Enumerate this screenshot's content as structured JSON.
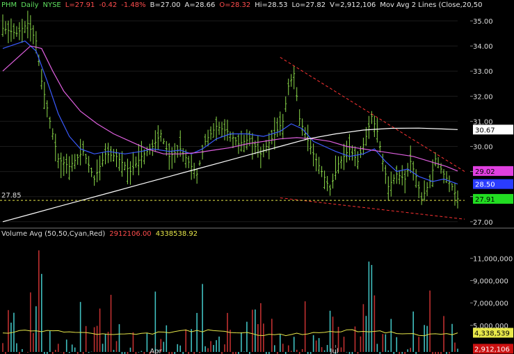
{
  "header": {
    "symbol": "PHM",
    "interval": "Daily",
    "exchange": "NYSE",
    "last": "L=27.91",
    "change": "-0.42",
    "change_pct": "-1.48%",
    "bid": "B=27.00",
    "ask": "A=28.66",
    "open": "O=28.32",
    "high": "Hi=28.53",
    "low": "Lo=27.82",
    "volume": "V=2,912,106",
    "study": "Mov Avg 2 Lines (Close,20,50"
  },
  "volume_header": {
    "label": "Volume Avg (50,50,Cyan,Red)",
    "current": "2912106.00",
    "average": "4338538.92"
  },
  "colors": {
    "background": "#000000",
    "up_bar": "#8bd94a",
    "sma20": "#3a5bff",
    "sma50": "#e060e0",
    "sma200": "#ffffff",
    "trendline": "#ff3333",
    "support": "#e8e84a",
    "vol_up": "#40c0c0",
    "vol_down": "#c03030",
    "vol_avg": "#e8e84a"
  },
  "price_tags": {
    "sma200": "30.67",
    "sma50": "29.02",
    "sma20": "28.50",
    "last": "27.91",
    "support": "27.85"
  },
  "volume_tags": {
    "average": "4,338,539",
    "current": "2,912,106"
  },
  "chart_data": [
    {
      "type": "ohlc",
      "title": "PHM - Daily NYSE",
      "y_axis_ticks": [
        "27.00",
        "28.00",
        "29.00",
        "30.00",
        "31.00",
        "32.00",
        "33.00",
        "34.00",
        "35.00"
      ],
      "ylim": [
        26.8,
        35.5
      ],
      "x_axis_labels": [
        {
          "label": "Apr",
          "day": 55
        },
        {
          "label": "Jul",
          "day": 120
        }
      ],
      "days": 164,
      "support_level": 27.85,
      "series": [
        {
          "name": "Close",
          "points": [
            [
              0,
              34.7
            ],
            [
              5,
              34.5
            ],
            [
              9,
              34.9
            ],
            [
              12,
              34.2
            ],
            [
              14,
              32.6
            ],
            [
              17,
              31.0
            ],
            [
              20,
              29.5
            ],
            [
              24,
              29.2
            ],
            [
              29,
              29.8
            ],
            [
              33,
              28.7
            ],
            [
              37,
              29.7
            ],
            [
              41,
              29.6
            ],
            [
              46,
              29.0
            ],
            [
              50,
              29.6
            ],
            [
              54,
              30.0
            ],
            [
              57,
              30.5
            ],
            [
              60,
              29.6
            ],
            [
              64,
              29.9
            ],
            [
              68,
              29.2
            ],
            [
              70,
              28.9
            ],
            [
              73,
              30.2
            ],
            [
              77,
              30.8
            ],
            [
              81,
              30.6
            ],
            [
              85,
              30.1
            ],
            [
              89,
              30.3
            ],
            [
              93,
              29.7
            ],
            [
              97,
              30.3
            ],
            [
              101,
              31.0
            ],
            [
              103,
              32.4
            ],
            [
              105,
              32.9
            ],
            [
              107,
              31.1
            ],
            [
              109,
              30.5
            ],
            [
              112,
              29.7
            ],
            [
              115,
              29.0
            ],
            [
              118,
              28.3
            ],
            [
              121,
              29.3
            ],
            [
              125,
              29.9
            ],
            [
              128,
              29.4
            ],
            [
              131,
              30.4
            ],
            [
              133,
              31.2
            ],
            [
              135,
              30.6
            ],
            [
              137,
              29.4
            ],
            [
              139,
              28.4
            ],
            [
              142,
              28.9
            ],
            [
              145,
              28.7
            ],
            [
              147,
              29.4
            ],
            [
              149,
              28.8
            ],
            [
              151,
              27.9
            ],
            [
              154,
              28.6
            ],
            [
              156,
              29.5
            ],
            [
              159,
              28.9
            ],
            [
              162,
              28.4
            ],
            [
              164,
              27.91
            ]
          ]
        },
        {
          "name": "SMA 20",
          "points": [
            [
              0,
              33.9
            ],
            [
              8,
              34.2
            ],
            [
              12,
              33.8
            ],
            [
              16,
              32.6
            ],
            [
              20,
              31.3
            ],
            [
              24,
              30.4
            ],
            [
              28,
              29.9
            ],
            [
              33,
              29.7
            ],
            [
              38,
              29.8
            ],
            [
              44,
              29.7
            ],
            [
              50,
              29.8
            ],
            [
              54,
              29.9
            ],
            [
              60,
              29.8
            ],
            [
              64,
              29.85
            ],
            [
              68,
              29.7
            ],
            [
              72,
              29.9
            ],
            [
              77,
              30.3
            ],
            [
              82,
              30.5
            ],
            [
              88,
              30.5
            ],
            [
              94,
              30.4
            ],
            [
              100,
              30.6
            ],
            [
              104,
              30.9
            ],
            [
              108,
              30.7
            ],
            [
              112,
              30.2
            ],
            [
              116,
              30.0
            ],
            [
              120,
              29.8
            ],
            [
              125,
              29.6
            ],
            [
              130,
              29.7
            ],
            [
              134,
              29.9
            ],
            [
              138,
              29.4
            ],
            [
              142,
              29.0
            ],
            [
              146,
              29.1
            ],
            [
              150,
              28.8
            ],
            [
              155,
              28.6
            ],
            [
              159,
              28.7
            ],
            [
              164,
              28.5
            ]
          ]
        },
        {
          "name": "SMA 50",
          "points": [
            [
              0,
              33.0
            ],
            [
              6,
              33.6
            ],
            [
              10,
              34.0
            ],
            [
              14,
              33.9
            ],
            [
              18,
              33.0
            ],
            [
              22,
              32.2
            ],
            [
              28,
              31.4
            ],
            [
              34,
              30.9
            ],
            [
              40,
              30.5
            ],
            [
              46,
              30.2
            ],
            [
              52,
              29.9
            ],
            [
              58,
              29.7
            ],
            [
              64,
              29.7
            ],
            [
              70,
              29.75
            ],
            [
              76,
              29.85
            ],
            [
              82,
              29.95
            ],
            [
              88,
              30.1
            ],
            [
              94,
              30.2
            ],
            [
              100,
              30.3
            ],
            [
              106,
              30.35
            ],
            [
              112,
              30.3
            ],
            [
              118,
              30.2
            ],
            [
              124,
              30.0
            ],
            [
              130,
              29.9
            ],
            [
              136,
              29.8
            ],
            [
              142,
              29.7
            ],
            [
              148,
              29.6
            ],
            [
              154,
              29.4
            ],
            [
              160,
              29.2
            ],
            [
              164,
              29.02
            ]
          ]
        },
        {
          "name": "SMA 200",
          "points": [
            [
              0,
              27.0
            ],
            [
              10,
              27.3
            ],
            [
              20,
              27.6
            ],
            [
              30,
              27.9
            ],
            [
              40,
              28.2
            ],
            [
              50,
              28.5
            ],
            [
              60,
              28.8
            ],
            [
              70,
              29.1
            ],
            [
              80,
              29.4
            ],
            [
              90,
              29.7
            ],
            [
              100,
              30.0
            ],
            [
              110,
              30.3
            ],
            [
              120,
              30.5
            ],
            [
              130,
              30.65
            ],
            [
              140,
              30.72
            ],
            [
              150,
              30.73
            ],
            [
              160,
              30.69
            ],
            [
              164,
              30.67
            ]
          ]
        }
      ]
    },
    {
      "type": "bar",
      "title": "Volume Avg (50,50,Cyan,Red)",
      "y_axis_ticks": [
        "5,000,000",
        "7,000,000",
        "9,000,000",
        "11,000,000"
      ],
      "ylim": [
        3000000,
        12200000
      ],
      "average": 4338539,
      "current": 2912106
    }
  ]
}
